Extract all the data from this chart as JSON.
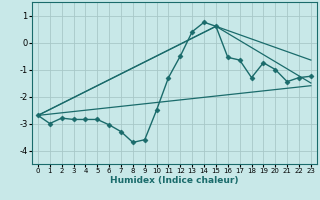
{
  "xlabel": "Humidex (Indice chaleur)",
  "bg_color": "#c8e8e8",
  "grid_color": "#a8c8c8",
  "line_color": "#1a6b6b",
  "xlim": [
    -0.5,
    23.5
  ],
  "ylim": [
    -4.5,
    1.5
  ],
  "yticks": [
    1,
    0,
    -1,
    -2,
    -3,
    -4
  ],
  "xticks": [
    0,
    1,
    2,
    3,
    4,
    5,
    6,
    7,
    8,
    9,
    10,
    11,
    12,
    13,
    14,
    15,
    16,
    17,
    18,
    19,
    20,
    21,
    22,
    23
  ],
  "main_x": [
    0,
    1,
    2,
    3,
    4,
    5,
    6,
    7,
    8,
    9,
    10,
    11,
    12,
    13,
    14,
    15,
    16,
    17,
    18,
    19,
    20,
    21,
    22,
    23
  ],
  "main_y": [
    -2.7,
    -3.0,
    -2.8,
    -2.85,
    -2.85,
    -2.85,
    -3.05,
    -3.3,
    -3.7,
    -3.6,
    -2.5,
    -1.3,
    -0.5,
    0.4,
    0.75,
    0.6,
    -0.55,
    -0.65,
    -1.3,
    -0.75,
    -1.0,
    -1.45,
    -1.3,
    -1.25
  ],
  "line1_x": [
    0,
    15,
    23
  ],
  "line1_y": [
    -2.7,
    0.6,
    -0.65
  ],
  "line2_x": [
    0,
    15,
    23
  ],
  "line2_y": [
    -2.7,
    0.6,
    -1.5
  ],
  "line3_x": [
    0,
    23
  ],
  "line3_y": [
    -2.7,
    -1.6
  ]
}
